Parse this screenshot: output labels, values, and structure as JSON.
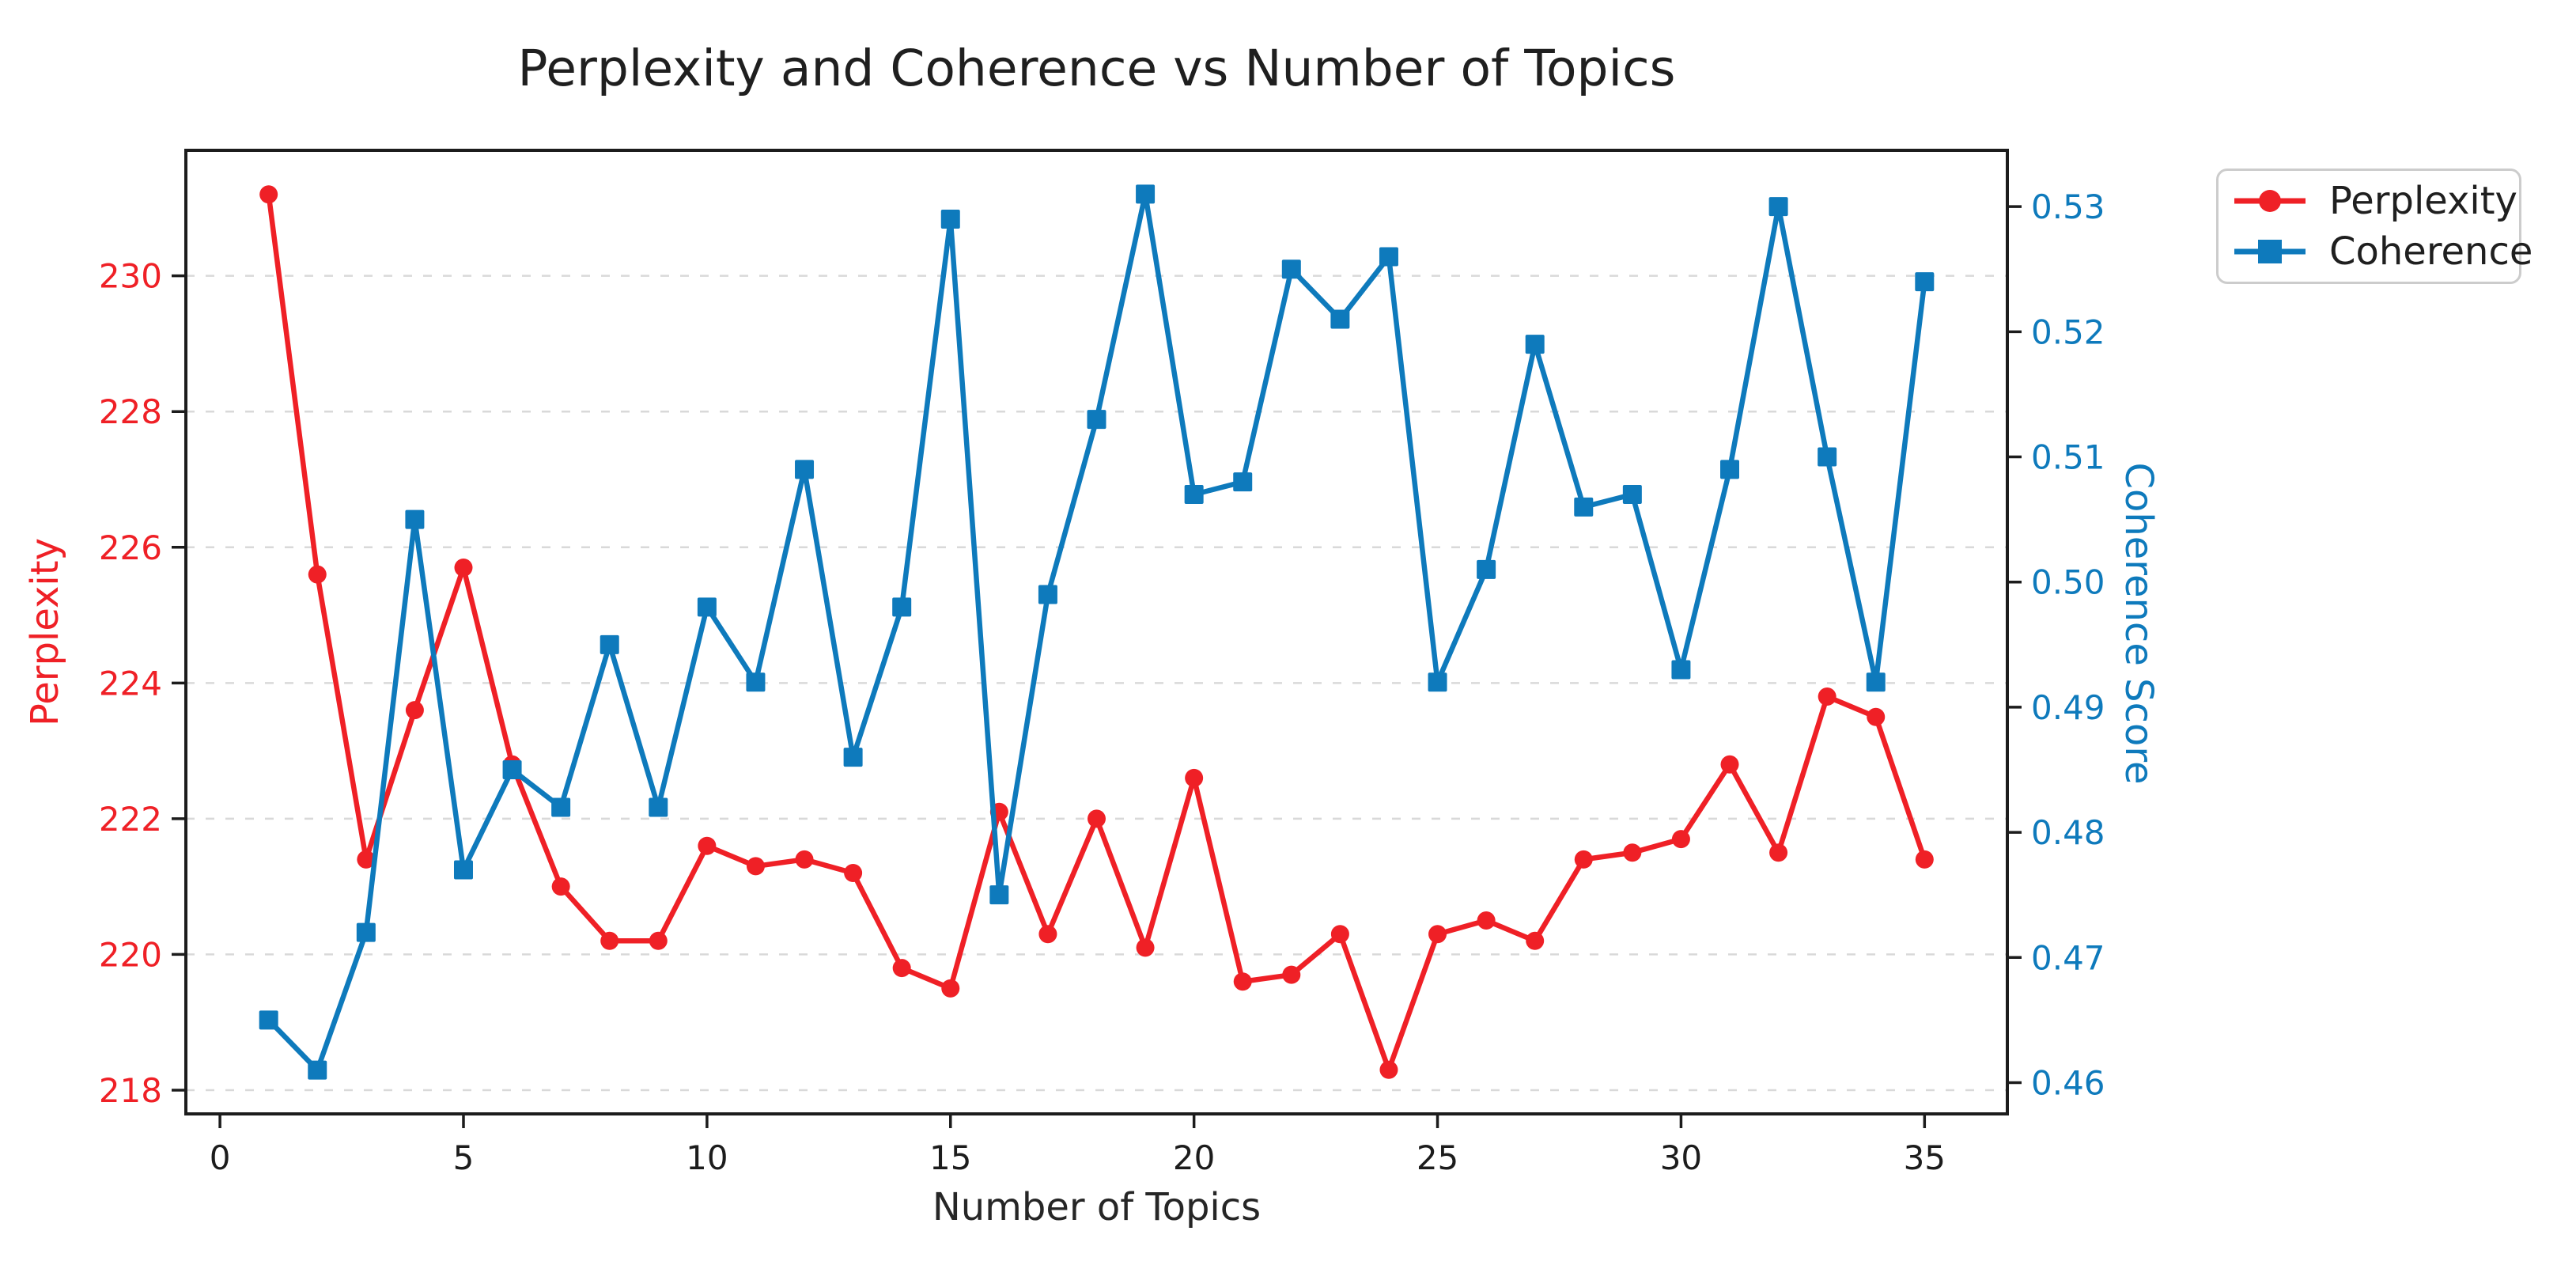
{
  "title": "Perplexity and Coherence vs Number of Topics",
  "axes": {
    "x_label": "Number of Topics",
    "y_left_label": "Perplexity",
    "y_right_label": "Coherence Score"
  },
  "legend": {
    "items": [
      {
        "label": "Perplexity",
        "marker": "circle",
        "color_key": "perplexity"
      },
      {
        "label": "Coherence",
        "marker": "square",
        "color_key": "coherence"
      }
    ]
  },
  "colors": {
    "perplexity": "#ef2026",
    "coherence": "#0e7abc",
    "spine": "#1c1c1c",
    "grid": "#d9d9d9",
    "tick_text": "#1c1c1c",
    "title_text": "#1f1f1f",
    "legend_border": "#cccccc"
  },
  "chart_data": {
    "type": "line",
    "title": "Perplexity and Coherence vs Number of Topics",
    "xlabel": "Number of Topics",
    "ylabel_left": "Perplexity",
    "ylabel_right": "Coherence Score",
    "grid": {
      "axis": "y-left",
      "style": "dashed"
    },
    "legend_position": "outside-upper-right",
    "x": [
      1,
      2,
      3,
      4,
      5,
      6,
      7,
      8,
      9,
      10,
      11,
      12,
      13,
      14,
      15,
      16,
      17,
      18,
      19,
      20,
      21,
      22,
      23,
      24,
      25,
      26,
      27,
      28,
      29,
      30,
      31,
      32,
      33,
      34,
      35
    ],
    "series": [
      {
        "name": "Perplexity",
        "axis": "left",
        "marker": "circle",
        "color_key": "perplexity",
        "values": [
          231.2,
          225.6,
          221.4,
          223.6,
          225.7,
          222.8,
          221.0,
          220.2,
          220.2,
          221.6,
          221.3,
          221.4,
          221.2,
          219.8,
          219.5,
          222.1,
          220.3,
          222.0,
          220.1,
          222.6,
          219.6,
          219.7,
          220.3,
          218.3,
          220.3,
          220.5,
          220.2,
          221.4,
          221.5,
          221.7,
          222.8,
          221.5,
          223.8,
          223.5,
          221.4
        ]
      },
      {
        "name": "Coherence",
        "axis": "right",
        "marker": "square",
        "color_key": "coherence",
        "values": [
          0.465,
          0.461,
          0.472,
          0.505,
          0.477,
          0.485,
          0.482,
          0.495,
          0.482,
          0.498,
          0.492,
          0.509,
          0.486,
          0.498,
          0.529,
          0.475,
          0.499,
          0.513,
          0.531,
          0.507,
          0.508,
          0.525,
          0.521,
          0.526,
          0.492,
          0.501,
          0.519,
          0.506,
          0.507,
          0.493,
          0.509,
          0.53,
          0.51,
          0.492,
          0.524
        ]
      }
    ],
    "xlim": [
      -0.7,
      36.7
    ],
    "ylim_left": [
      217.65,
      231.85
    ],
    "ylim_right": [
      0.4575,
      0.5345
    ],
    "x_ticks": {
      "values": [
        0,
        5,
        10,
        15,
        20,
        25,
        30,
        35
      ],
      "labels": [
        "0",
        "5",
        "10",
        "15",
        "20",
        "25",
        "30",
        "35"
      ]
    },
    "y_ticks_left": {
      "values": [
        218,
        220,
        222,
        224,
        226,
        228,
        230
      ],
      "labels": [
        "218",
        "220",
        "222",
        "224",
        "226",
        "228",
        "230"
      ]
    },
    "y_ticks_right": {
      "values": [
        0.46,
        0.47,
        0.48,
        0.49,
        0.5,
        0.51,
        0.52,
        0.53
      ],
      "labels": [
        "0.46",
        "0.47",
        "0.48",
        "0.49",
        "0.50",
        "0.51",
        "0.52",
        "0.53"
      ]
    }
  }
}
